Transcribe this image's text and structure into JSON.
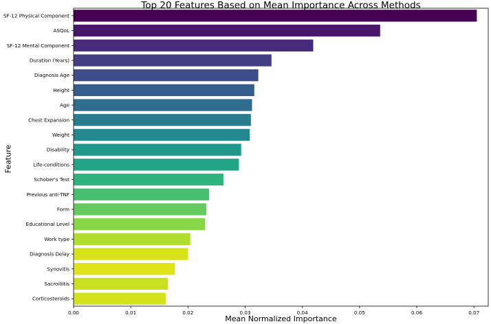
{
  "chart_data": {
    "type": "bar",
    "orientation": "horizontal",
    "title": "Top 20 Features Based on Mean Importance Across Methods",
    "xlabel": "Mean Normalized Importance",
    "ylabel": "Feature",
    "xlim": [
      0,
      0.0725
    ],
    "xticks": [
      "0.00",
      "0.01",
      "0.02",
      "0.03",
      "0.04",
      "0.05",
      "0.06",
      "0.07"
    ],
    "grid": false,
    "palette": "viridis",
    "categories": [
      "SF-12 Physical Component",
      "ASQoL",
      "SF-12 Mental Component",
      "Duration (Years)",
      "Diagnosis Age",
      "Height",
      "Age",
      "Chest Expansion",
      "Weight",
      "Disability",
      "Life-conditions",
      "Schober's Test",
      "Previous anti-TNF",
      "Form",
      "Educational Level",
      "Work type",
      "Diagnosis Delay",
      "Synovitis",
      "Sacroiliitis",
      "Corticosteroids"
    ],
    "values": [
      0.0705,
      0.0536,
      0.0419,
      0.0346,
      0.0323,
      0.0316,
      0.0312,
      0.031,
      0.0308,
      0.0293,
      0.0289,
      0.0262,
      0.0237,
      0.0232,
      0.023,
      0.0204,
      0.02,
      0.0177,
      0.0165,
      0.0161
    ],
    "colors": [
      "#440154",
      "#481769",
      "#472a7a",
      "#433d84",
      "#3d4e8a",
      "#355e8d",
      "#2e6d8e",
      "#297b8e",
      "#23898e",
      "#1f978b",
      "#21a585",
      "#2eb37c",
      "#46c06f",
      "#65cb5e",
      "#89d548",
      "#b0dd2f",
      "#d8e219",
      "#dfe318",
      "#c8e020",
      "#d2e21b"
    ]
  }
}
